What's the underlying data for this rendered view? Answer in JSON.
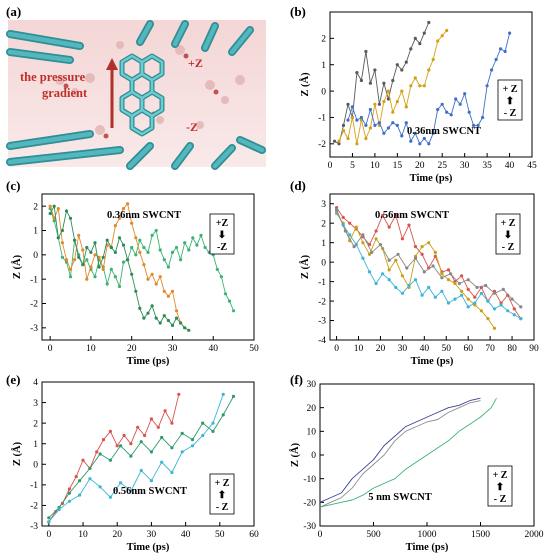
{
  "figure": {
    "panel_a": {
      "label": "(a)",
      "annotations": [
        "the pressure",
        "gradient",
        "+Z",
        "-Z"
      ]
    }
  },
  "chart_data": [
    {
      "id": "b",
      "label": "(b)",
      "type": "line",
      "xlabel": "Time (ps)",
      "ylabel": "Z (Å)",
      "xlim": [
        0,
        45
      ],
      "ylim": [
        -2.5,
        3
      ],
      "xticks": [
        0,
        5,
        10,
        15,
        20,
        25,
        30,
        35,
        40,
        45
      ],
      "yticks": [
        -2,
        -1,
        0,
        1,
        2
      ],
      "annotation": "0.36nm SWCNT",
      "legend_lines": [
        "+ Z",
        "⬆",
        "- Z"
      ],
      "series": [
        {
          "color": "#5a5a5a",
          "x": [
            1,
            2,
            3,
            4,
            5,
            6,
            7,
            8,
            9,
            10,
            11,
            12,
            13,
            14,
            15,
            16,
            17,
            18,
            19,
            20,
            21,
            22
          ],
          "y": [
            -1.9,
            -2.0,
            -1.3,
            -0.5,
            -1.0,
            0.7,
            0.4,
            1.5,
            0.3,
            0.8,
            -0.5,
            0.3,
            -0.3,
            0.4,
            1.0,
            0.8,
            1.1,
            1.6,
            2.0,
            1.8,
            2.2,
            2.6
          ]
        },
        {
          "color": "#d4a017",
          "x": [
            2,
            3,
            4,
            5,
            6,
            7,
            8,
            9,
            10,
            11,
            12,
            13,
            14,
            15,
            16,
            17,
            18,
            19,
            20,
            21,
            22,
            23,
            24,
            25,
            26
          ],
          "y": [
            -1.9,
            -1.5,
            -1.8,
            -1.0,
            -2.0,
            -1.1,
            -1.8,
            -1.4,
            -0.5,
            -1.3,
            -0.4,
            0.0,
            -0.8,
            -0.4,
            0.0,
            -0.6,
            0.2,
            0.5,
            0.2,
            0.2,
            0.8,
            1.2,
            1.9,
            2.1,
            2.3
          ]
        },
        {
          "color": "#3f6fc9",
          "x": [
            4,
            5,
            6,
            7,
            8,
            9,
            10,
            11,
            12,
            13,
            14,
            15,
            16,
            17,
            18,
            19,
            20,
            21,
            22,
            23,
            24,
            25,
            26,
            27,
            28,
            29,
            30,
            31,
            32,
            33,
            34,
            35,
            36,
            37,
            38,
            39,
            40
          ],
          "y": [
            -1.1,
            -0.6,
            -1.1,
            -1.0,
            -1.3,
            -0.7,
            -1.3,
            -1.2,
            -1.6,
            -1.4,
            -1.2,
            -1.3,
            -1.7,
            -1.2,
            -1.9,
            -1.6,
            -2.0,
            -1.8,
            -2.0,
            -1.6,
            -0.7,
            -0.5,
            -0.8,
            -0.9,
            -0.3,
            -0.5,
            -0.1,
            -0.8,
            -1.3,
            -1.3,
            -1.0,
            0.2,
            0.8,
            1.2,
            1.6,
            1.5,
            2.2
          ]
        }
      ]
    },
    {
      "id": "c",
      "label": "(c)",
      "type": "line",
      "xlabel": "Time (ps)",
      "ylabel": "Z (Å)",
      "xlim": [
        -2,
        50
      ],
      "ylim": [
        -3.5,
        2.5
      ],
      "xticks": [
        0,
        10,
        20,
        30,
        40,
        50
      ],
      "yticks": [
        -3,
        -2,
        -1,
        0,
        1,
        2
      ],
      "annotation": "0.36nm SWCNT",
      "legend_lines": [
        "+Z",
        "⬇",
        "-Z"
      ],
      "series": [
        {
          "color": "#3cb371",
          "x": [
            0,
            1,
            2,
            3,
            4,
            5,
            6,
            7,
            8,
            9,
            10,
            11,
            12,
            13,
            14,
            15,
            16,
            17,
            18,
            19,
            20,
            21,
            22,
            23,
            24,
            25,
            26,
            27,
            28,
            29,
            30,
            31,
            32,
            33,
            34,
            35,
            36,
            37,
            38,
            39,
            40,
            41,
            42,
            43,
            44,
            45
          ],
          "y": [
            1.9,
            1.4,
            0.7,
            -0.1,
            -0.3,
            -0.9,
            0.6,
            0.0,
            -0.4,
            -0.2,
            -0.6,
            -0.9,
            -0.2,
            -0.5,
            -1.2,
            -0.6,
            -0.9,
            -1.3,
            -0.3,
            -0.2,
            0.3,
            0.0,
            0.6,
            0.3,
            0.1,
            0.8,
            1.0,
            0.2,
            -0.2,
            -0.5,
            0.1,
            0.3,
            -0.2,
            0.5,
            0.2,
            0.7,
            0.4,
            0.8,
            0.3,
            0.1,
            0.0,
            -0.6,
            -0.9,
            -1.6,
            -1.9,
            -2.3
          ]
        },
        {
          "color": "#e08a2a",
          "x": [
            0,
            1,
            2,
            3,
            4,
            5,
            6,
            7,
            8,
            9,
            10,
            11,
            12,
            13,
            14,
            15,
            16,
            17,
            18,
            19,
            20,
            21,
            22,
            23,
            24,
            25,
            26,
            27,
            28,
            29,
            30,
            31,
            32,
            33
          ],
          "y": [
            2.0,
            1.5,
            1.9,
            0.5,
            -0.2,
            -0.6,
            -0.2,
            0.8,
            0.2,
            -1.0,
            -0.5,
            0.0,
            -0.1,
            -0.6,
            0.4,
            0.3,
            1.2,
            1.5,
            1.9,
            2.1,
            1.3,
            0.7,
            0.1,
            -0.4,
            -1.0,
            -0.8,
            -1.2,
            -0.9,
            -1.5,
            -1.7,
            -1.5,
            -2.3,
            -2.8,
            -3.0
          ]
        },
        {
          "color": "#2e8b57",
          "x": [
            0,
            1,
            2,
            3,
            4,
            5,
            6,
            7,
            8,
            9,
            10,
            11,
            12,
            13,
            14,
            15,
            16,
            17,
            18,
            19,
            20,
            21,
            22,
            23,
            24,
            25,
            26,
            27,
            28,
            29,
            30,
            31,
            32,
            33,
            34
          ],
          "y": [
            1.7,
            2.0,
            0.7,
            1.0,
            1.8,
            1.5,
            0.6,
            -0.1,
            -0.4,
            0.3,
            0.1,
            0.5,
            -0.5,
            -0.1,
            0.6,
            0.3,
            0.1,
            0.7,
            0.4,
            -0.2,
            -0.8,
            -1.5,
            -2.2,
            -2.6,
            -2.4,
            -2.1,
            -2.6,
            -2.8,
            -2.5,
            -2.7,
            -2.9,
            -2.6,
            -2.8,
            -3.0,
            -3.1
          ]
        }
      ]
    },
    {
      "id": "d",
      "label": "(d)",
      "type": "line",
      "xlabel": "Time (ps)",
      "ylabel": "Z (Å)",
      "xlim": [
        -3,
        90
      ],
      "ylim": [
        -4,
        3.5
      ],
      "xticks": [
        0,
        10,
        20,
        30,
        40,
        50,
        60,
        70,
        80,
        90
      ],
      "yticks": [
        -4,
        -3,
        -2,
        -1,
        0,
        1,
        2,
        3
      ],
      "annotation": "0.56nm SWCNT",
      "legend_lines": [
        "+ Z",
        "⬇",
        "- Z"
      ],
      "series": [
        {
          "color": "#d9534f",
          "x": [
            0,
            3,
            6,
            9,
            12,
            15,
            18,
            21,
            24,
            27,
            30,
            33,
            36,
            39,
            42,
            45,
            48,
            51,
            54,
            57,
            60,
            63,
            66,
            69,
            72,
            75,
            78,
            81,
            84
          ],
          "y": [
            2.8,
            2.3,
            2.0,
            1.7,
            1.3,
            0.9,
            1.6,
            2.4,
            1.8,
            2.4,
            1.2,
            1.9,
            0.8,
            0.4,
            -0.3,
            0.3,
            -0.5,
            -0.4,
            -1.0,
            -0.7,
            -1.4,
            -1.8,
            -1.3,
            -2.0,
            -1.5,
            -2.1,
            -1.7,
            -2.4,
            -2.9
          ]
        },
        {
          "color": "#c8a017",
          "x": [
            0,
            3,
            6,
            9,
            12,
            15,
            18,
            21,
            24,
            27,
            30,
            33,
            36,
            39,
            42,
            45,
            48,
            51,
            54,
            57,
            60,
            63,
            66,
            69,
            72
          ],
          "y": [
            2.5,
            2.0,
            1.1,
            1.8,
            1.0,
            0.4,
            1.2,
            0.7,
            -0.4,
            0.1,
            -0.7,
            -1.3,
            0.3,
            0.8,
            1.0,
            0.5,
            -0.6,
            -0.9,
            -1.1,
            -1.5,
            -1.9,
            -2.2,
            -2.5,
            -2.9,
            -3.4
          ]
        },
        {
          "color": "#3bb6d4",
          "x": [
            0,
            3,
            6,
            9,
            12,
            15,
            18,
            21,
            24,
            27,
            30,
            33,
            36,
            39,
            42,
            45,
            48,
            51,
            54,
            57,
            60,
            63,
            66,
            69,
            72,
            75,
            78,
            81,
            84
          ],
          "y": [
            2.6,
            1.9,
            1.4,
            0.9,
            0.2,
            -0.5,
            -1.1,
            -0.6,
            -0.9,
            -1.3,
            -1.6,
            -1.2,
            -0.9,
            -1.7,
            -1.3,
            -1.8,
            -1.5,
            -2.1,
            -1.9,
            -1.7,
            -2.3,
            -2.1,
            -1.6,
            -2.0,
            -2.4,
            -2.2,
            -2.5,
            -2.7,
            -2.9
          ]
        },
        {
          "color": "#888888",
          "x": [
            0,
            4,
            8,
            12,
            16,
            20,
            24,
            28,
            32,
            36,
            40,
            44,
            48,
            52,
            56,
            60,
            64,
            68,
            72,
            76,
            80,
            84
          ],
          "y": [
            2.7,
            1.6,
            0.8,
            1.4,
            0.5,
            0.9,
            0.1,
            0.4,
            -0.3,
            0.2,
            -0.5,
            -0.2,
            -0.8,
            -0.6,
            -1.1,
            -0.9,
            -1.3,
            -1.2,
            -1.6,
            -1.4,
            -1.9,
            -2.3
          ]
        }
      ]
    },
    {
      "id": "e",
      "label": "(e)",
      "type": "line",
      "xlabel": "Time (ps)",
      "ylabel": "Z (Å)",
      "xlim": [
        -2,
        60
      ],
      "ylim": [
        -3,
        4
      ],
      "xticks": [
        0,
        10,
        20,
        30,
        40,
        50,
        60
      ],
      "yticks": [
        -3,
        -2,
        -1,
        0,
        1,
        2,
        3,
        4
      ],
      "annotation": "0.56nm SWCNT",
      "legend_lines": [
        "+ Z",
        "⬆",
        "- Z"
      ],
      "series": [
        {
          "color": "#d9534f",
          "x": [
            0,
            2,
            4,
            6,
            8,
            10,
            12,
            14,
            16,
            18,
            20,
            22,
            24,
            26,
            28,
            30,
            32,
            34,
            36,
            38
          ],
          "y": [
            -2.8,
            -2.3,
            -1.9,
            -1.2,
            -0.6,
            0.2,
            -0.2,
            0.6,
            1.2,
            1.6,
            0.9,
            1.4,
            1.0,
            1.8,
            1.4,
            2.2,
            1.8,
            2.6,
            2.0,
            3.4
          ]
        },
        {
          "color": "#2e9b6a",
          "x": [
            0,
            3,
            6,
            9,
            12,
            15,
            18,
            21,
            24,
            27,
            30,
            33,
            36,
            39,
            42,
            45,
            48,
            51,
            54
          ],
          "y": [
            -2.6,
            -2.1,
            -1.4,
            -0.8,
            -0.2,
            0.5,
            0.2,
            0.9,
            0.4,
            1.1,
            0.6,
            1.3,
            0.8,
            1.5,
            1.2,
            2.0,
            1.6,
            2.4,
            3.3
          ]
        },
        {
          "color": "#3bb6d4",
          "x": [
            0,
            3,
            6,
            9,
            12,
            15,
            18,
            21,
            24,
            27,
            30,
            33,
            36,
            39,
            42,
            45,
            48,
            51
          ],
          "y": [
            -2.8,
            -2.2,
            -1.8,
            -1.5,
            -0.7,
            -1.1,
            -1.6,
            -0.9,
            -1.3,
            -0.3,
            -0.8,
            0.1,
            -0.4,
            0.6,
            0.9,
            1.4,
            2.0,
            3.4
          ]
        }
      ]
    },
    {
      "id": "f",
      "label": "(f)",
      "type": "line",
      "xlabel": "Time (ps)",
      "ylabel": "Z (Å)",
      "xlim": [
        0,
        2000
      ],
      "ylim": [
        -30,
        30
      ],
      "xticks": [
        0,
        500,
        1000,
        1500,
        2000
      ],
      "yticks": [
        -30,
        -20,
        -10,
        0,
        10,
        20,
        30
      ],
      "annotation": "5 nm SWCNT",
      "legend_lines": [
        "+ Z",
        "⬆",
        "- Z"
      ],
      "series": [
        {
          "color": "#3a3f9a",
          "x": [
            0,
            100,
            200,
            300,
            400,
            500,
            600,
            700,
            800,
            900,
            1000,
            1100,
            1200,
            1300,
            1400,
            1500
          ],
          "y": [
            -20,
            -18,
            -16,
            -10,
            -6,
            -2,
            4,
            8,
            12,
            14,
            16,
            18,
            20,
            21,
            23,
            24
          ]
        },
        {
          "color": "#8c8c8c",
          "x": [
            0,
            100,
            200,
            300,
            400,
            500,
            600,
            700,
            800,
            900,
            1000,
            1100,
            1200,
            1300,
            1400,
            1500
          ],
          "y": [
            -22,
            -20,
            -18,
            -14,
            -8,
            -4,
            0,
            6,
            10,
            12,
            14,
            15,
            18,
            20,
            22,
            23
          ]
        },
        {
          "color": "#3cb371",
          "x": [
            0,
            100,
            200,
            300,
            400,
            500,
            600,
            700,
            800,
            900,
            1000,
            1100,
            1200,
            1300,
            1400,
            1500,
            1600,
            1650
          ],
          "y": [
            -22,
            -21,
            -20,
            -19,
            -17,
            -14,
            -12,
            -10,
            -6,
            -3,
            0,
            3,
            6,
            10,
            13,
            16,
            20,
            24
          ]
        }
      ]
    }
  ]
}
